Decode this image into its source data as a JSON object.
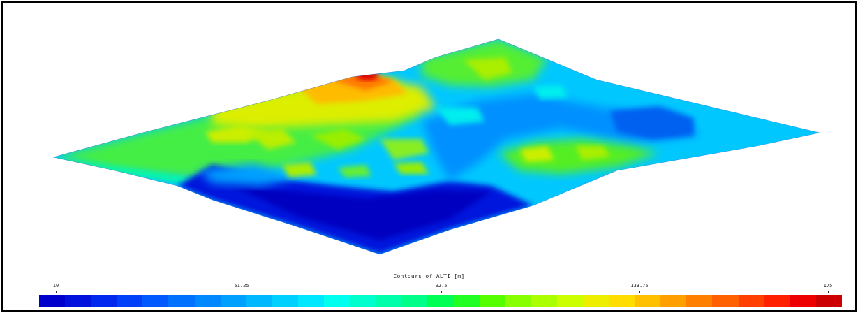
{
  "legend": {
    "title": "Contours of ALTI  [m]",
    "ticks": [
      {
        "label": "10",
        "value": 10
      },
      {
        "label": "51.25",
        "value": 51.25
      },
      {
        "label": "92.5",
        "value": 92.5
      },
      {
        "label": "133.75",
        "value": 133.75
      },
      {
        "label": "175",
        "value": 175
      }
    ],
    "min": 10,
    "max": 175,
    "colors": [
      "#0000cc",
      "#0010dd",
      "#0028ee",
      "#0040f8",
      "#0058ff",
      "#0070ff",
      "#0088ff",
      "#00a0ff",
      "#00b8ff",
      "#00d0ff",
      "#00e8ff",
      "#00ffee",
      "#00ffcc",
      "#00ffaa",
      "#00ff88",
      "#00ff55",
      "#22ff22",
      "#55ff00",
      "#88ff00",
      "#aaff00",
      "#ccff00",
      "#eeee00",
      "#ffdd00",
      "#ffc000",
      "#ffa000",
      "#ff8000",
      "#ff6000",
      "#ff4000",
      "#ff2000",
      "#ee0000",
      "#cc0000"
    ]
  }
}
